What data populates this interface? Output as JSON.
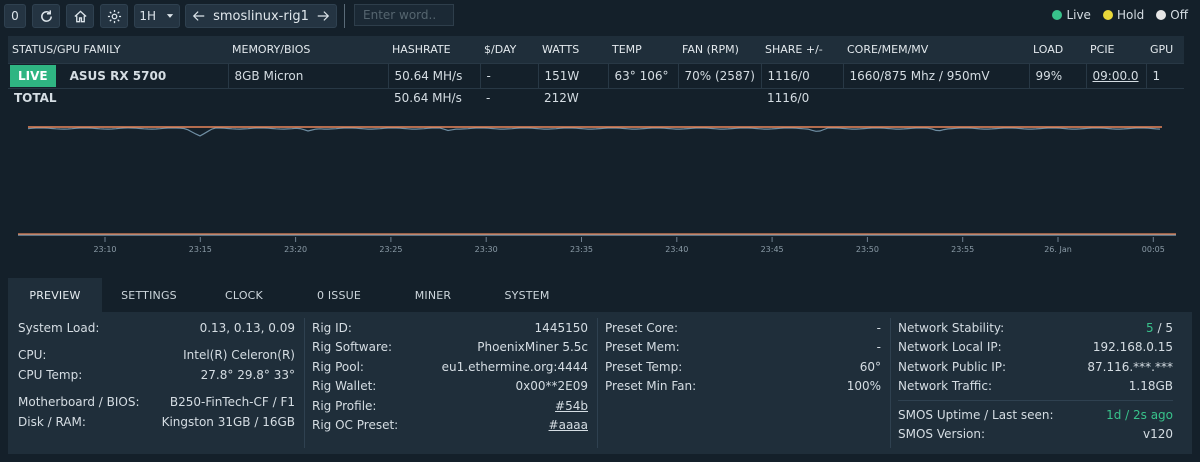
{
  "toolbar": {
    "count": "0",
    "period": "1H",
    "rig_name": "smoslinux-rig1",
    "search_placeholder": "Enter word.."
  },
  "legend": [
    {
      "label": "Live",
      "color": "#38c28b"
    },
    {
      "label": "Hold",
      "color": "#e9d83a"
    },
    {
      "label": "Off",
      "color": "#e6e6e6"
    }
  ],
  "table": {
    "headers": [
      "STATUS/GPU FAMILY",
      "MEMORY/BIOS",
      "HASHRATE",
      "$/DAY",
      "WATTS",
      "TEMP",
      "FAN (RPM)",
      "SHARE +/-",
      "CORE/MEM/MV",
      "LOAD",
      "PCIE",
      "GPU"
    ],
    "gpu": {
      "status": "LIVE",
      "name": "ASUS RX 5700",
      "memory": "8GB Micron",
      "hashrate": "50.64 MH/s",
      "day": "-",
      "watts": "151W",
      "temp": "63° 106°",
      "fan": "70% (2587)",
      "share": "1116/0",
      "core": "1660/875 Mhz / 950mV",
      "load": "99%",
      "pcie": "09:00.0",
      "gpu": "1"
    },
    "total": {
      "label": "TOTAL",
      "hashrate": "50.64 MH/s",
      "day": "-",
      "watts": "212W",
      "share": "1116/0"
    }
  },
  "graph": {
    "x_labels": [
      "23:10",
      "23:15",
      "23:20",
      "23:25",
      "23:30",
      "23:35",
      "23:40",
      "23:45",
      "23:50",
      "23:55",
      "26. Jan",
      "00:05"
    ],
    "line_colors": [
      "#e8865a",
      "#6f8ea3"
    ]
  },
  "tabs": [
    "PREVIEW",
    "SETTINGS",
    "CLOCK",
    "0 ISSUE",
    "MINER",
    "SYSTEM"
  ],
  "preview": {
    "system": {
      "load_label": "System Load:",
      "load": "0.13, 0.13, 0.09",
      "cpu_label": "CPU:",
      "cpu": "Intel(R) Celeron(R)",
      "cpu_temp_label": "CPU Temp:",
      "cpu_temp": "27.8° 29.8° 33°",
      "mb_label": "Motherboard / BIOS:",
      "mb": "B250-FinTech-CF / F1",
      "disk_label": "Disk / RAM:",
      "disk": "Kingston 31GB / 16GB"
    },
    "rig": {
      "id_label": "Rig ID:",
      "id": "1445150",
      "software_label": "Rig Software:",
      "software": "PhoenixMiner 5.5c",
      "pool_label": "Rig Pool:",
      "pool": "eu1.ethermine.org:4444",
      "wallet_label": "Rig Wallet:",
      "wallet": "0x00**2E09",
      "profile_label": "Rig Profile:",
      "profile": "#54b",
      "oc_label": "Rig OC Preset:",
      "oc": "#aaaa"
    },
    "preset": {
      "core_label": "Preset Core:",
      "core": "-",
      "mem_label": "Preset Mem:",
      "mem": "-",
      "temp_label": "Preset Temp:",
      "temp": "60°",
      "fan_label": "Preset Min Fan:",
      "fan": "100%"
    },
    "network": {
      "stability_label": "Network Stability:",
      "stability_good": "5",
      "stability_sep": " / ",
      "stability_total": "5",
      "local_label": "Network Local IP:",
      "local": "192.168.0.15",
      "public_label": "Network Public IP:",
      "public": "87.116.***.***",
      "traffic_label": "Network Traffic:",
      "traffic": "1.18GB",
      "uptime_label": "SMOS Uptime / Last seen:",
      "uptime": "1d / 2s ago",
      "version_label": "SMOS Version:",
      "version": "v120"
    }
  }
}
